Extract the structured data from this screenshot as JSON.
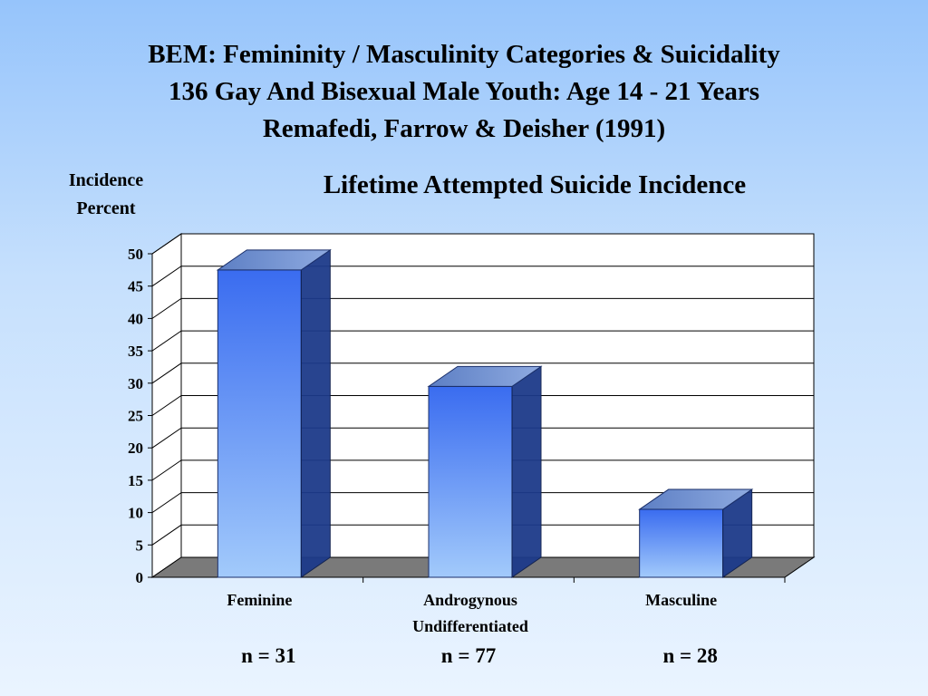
{
  "slide": {
    "title_lines": [
      "BEM: Femininity / Masculinity Categories & Suicidality",
      "136 Gay And Bisexual Male Youth: Age 14 - 21 Years",
      "Remafedi, Farrow & Deisher (1991)"
    ]
  },
  "chart_data": {
    "type": "bar",
    "style": "3d-column",
    "title": "Lifetime Attempted Suicide Incidence",
    "ylabel_lines": [
      "Incidence",
      "Percent"
    ],
    "xlabel": "",
    "categories": [
      "Feminine",
      "Androgynous Undifferentiated",
      "Masculine"
    ],
    "category_label_lines": [
      [
        "Feminine"
      ],
      [
        "Androgynous",
        "Undifferentiated"
      ],
      [
        "Masculine"
      ]
    ],
    "values": [
      47.5,
      29.5,
      10.5
    ],
    "ylim": [
      0,
      50
    ],
    "yticks": [
      0,
      5,
      10,
      15,
      20,
      25,
      30,
      35,
      40,
      45,
      50
    ],
    "sample_sizes": [
      "n = 31",
      "n = 77",
      "n = 28"
    ],
    "grid": true,
    "legend": "none",
    "colors": {
      "bar_top": "#3d6ff0",
      "bar_bottom": "#9dc6fb",
      "bar_side": "#1d3a8a",
      "floor": "#7a7a7a",
      "plot_background": "#ffffff"
    }
  }
}
